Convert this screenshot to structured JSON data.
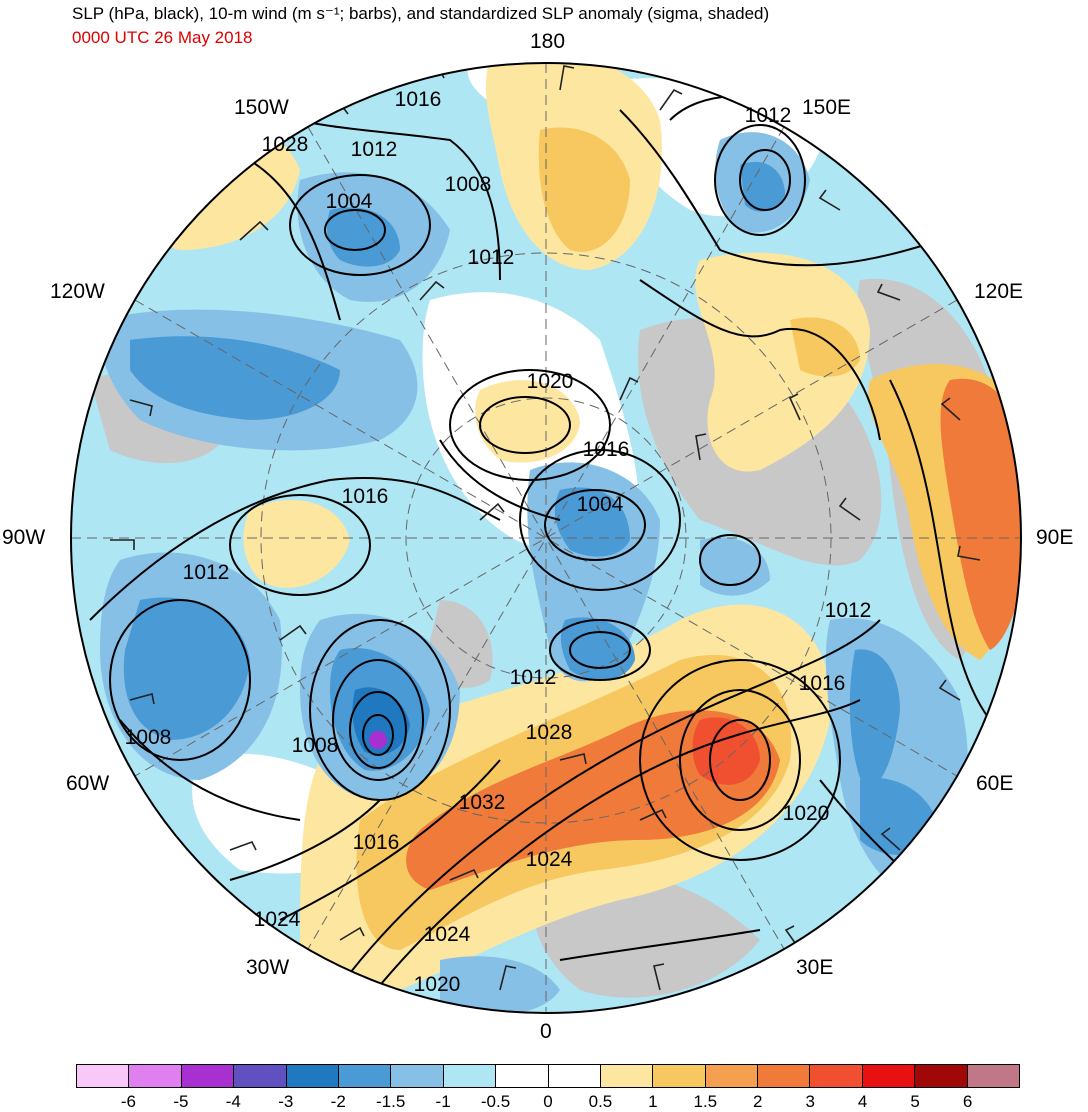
{
  "title": "SLP (hPa, black), 10-m wind (m s⁻¹; barbs), and standardized SLP anomaly (sigma, shaded)",
  "valid_time": "0000 UTC 26 May 2018",
  "longitude_labels": {
    "lon_180": "180",
    "lon_150w": "150W",
    "lon_150e": "150E",
    "lon_120w": "120W",
    "lon_120e": "120E",
    "lon_90w": "90W",
    "lon_90e": "90E",
    "lon_60w": "60W",
    "lon_60e": "60E",
    "lon_30w": "30W",
    "lon_30e": "30E",
    "lon_0": "0"
  },
  "contour_labels": [
    "1016",
    "1012",
    "1028",
    "1012",
    "1008",
    "1004",
    "1012",
    "1020",
    "1016",
    "1004",
    "1016",
    "1012",
    "1012",
    "1012",
    "1016",
    "1008",
    "1008",
    "1028",
    "1032",
    "1020",
    "1016",
    "1024",
    "1024",
    "1024",
    "1020"
  ],
  "colorbar": {
    "colors": [
      "#f8c8f8",
      "#e080f0",
      "#a830d0",
      "#6050c0",
      "#1f78c0",
      "#4a9ad6",
      "#86c0e6",
      "#aee6f4",
      "#ffffff",
      "#ffffff",
      "#fde7a0",
      "#f7c860",
      "#f4a050",
      "#ef7a3a",
      "#f05030",
      "#e81010",
      "#a00808",
      "#c07888"
    ],
    "labels": [
      "-6",
      "-5",
      "-4",
      "-3",
      "-2",
      "-1.5",
      "-1",
      "-0.5",
      "0",
      "0.5",
      "1",
      "1.5",
      "2",
      "3",
      "4",
      "5",
      "6"
    ]
  },
  "colors": {
    "land_gray": "#c8c8c8",
    "timestamp_red": "#e00000"
  }
}
